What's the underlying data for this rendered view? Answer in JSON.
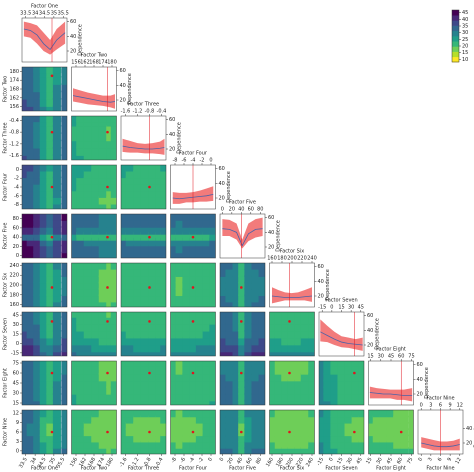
{
  "chart_data": {
    "type": "partial-dependence-matrix",
    "dependence_label": "Dependence",
    "dependence_ylim": [
      5,
      65
    ],
    "band_color": "#f27b7b",
    "line_color": "#4b62a8",
    "best_color": "#e0141e",
    "colormap": [
      "#fde725",
      "#b5de2b",
      "#6ece58",
      "#35b779",
      "#1f9e89",
      "#26828e",
      "#31688e",
      "#3e4989",
      "#482878",
      "#440154"
    ],
    "colorbar_lim": [
      8,
      47
    ],
    "colorbar_ticks": [
      10,
      15,
      20,
      25,
      30,
      35,
      40,
      45
    ],
    "factors": [
      {
        "name": "Factor One",
        "lim": [
          33.3,
          35.7
        ],
        "ticks": [
          33.5,
          34.0,
          34.5,
          35.0,
          35.5
        ],
        "best": 34.9,
        "dependence_ticks": [
          20,
          40,
          60
        ],
        "x": [
          33.4,
          33.75,
          34.1,
          34.45,
          34.8,
          35.15,
          35.6
        ],
        "dependence": [
          50,
          48,
          42,
          30,
          22,
          35,
          45
        ],
        "lower": [
          40,
          38,
          30,
          20,
          15,
          22,
          30
        ],
        "upper": [
          60,
          58,
          55,
          45,
          35,
          50,
          60
        ]
      },
      {
        "name": "Factor Two",
        "lim": [
          153,
          183
        ],
        "ticks": [
          156,
          162,
          168,
          174,
          180
        ],
        "best": 177,
        "dependence_ticks": [
          20,
          40,
          60
        ],
        "x": [
          154,
          159,
          164,
          169,
          174,
          179,
          182
        ],
        "dependence": [
          26,
          24,
          22,
          20,
          18,
          17,
          18
        ],
        "lower": [
          18,
          16,
          14,
          13,
          12,
          10,
          8
        ],
        "upper": [
          36,
          33,
          30,
          28,
          26,
          26,
          28
        ]
      },
      {
        "name": "Factor Three",
        "lim": [
          -1.75,
          -0.25
        ],
        "ticks": [
          -1.6,
          -1.2,
          -0.8,
          -0.4
        ],
        "best": -0.8,
        "dependence_ticks": [
          20,
          40,
          60
        ],
        "x": [
          -1.7,
          -1.45,
          -1.2,
          -0.95,
          -0.7,
          -0.45,
          -0.3
        ],
        "dependence": [
          24,
          22,
          21,
          20,
          20,
          21,
          22
        ],
        "lower": [
          16,
          15,
          15,
          14,
          14,
          13,
          12
        ],
        "upper": [
          34,
          31,
          28,
          27,
          28,
          30,
          34
        ]
      },
      {
        "name": "Factor Four",
        "lim": [
          -9,
          1
        ],
        "ticks": [
          -8,
          -6,
          -4,
          -2,
          0
        ],
        "best": -4,
        "dependence_ticks": [
          20,
          40,
          60
        ],
        "x": [
          -8.5,
          -7,
          -5.5,
          -4,
          -2.5,
          -1,
          0.5
        ],
        "dependence": [
          20,
          19,
          20,
          21,
          22,
          23,
          25
        ],
        "lower": [
          12,
          12,
          14,
          14,
          15,
          15,
          16
        ],
        "upper": [
          28,
          27,
          27,
          28,
          30,
          33,
          36
        ]
      },
      {
        "name": "Factor Five",
        "lim": [
          -5,
          90
        ],
        "ticks": [
          0,
          20,
          40,
          60,
          80
        ],
        "best": 40,
        "dependence_ticks": [
          20,
          40,
          60
        ],
        "x": [
          0,
          15,
          30,
          42,
          55,
          70,
          85
        ],
        "dependence": [
          45,
          44,
          40,
          22,
          38,
          44,
          45
        ],
        "lower": [
          35,
          35,
          30,
          18,
          28,
          33,
          35
        ],
        "upper": [
          58,
          57,
          52,
          30,
          52,
          58,
          60
        ]
      },
      {
        "name": "Factor Six",
        "lim": [
          155,
          245
        ],
        "ticks": [
          160,
          180,
          200,
          220,
          240
        ],
        "best": 195,
        "dependence_ticks": [
          20,
          40,
          60
        ],
        "x": [
          160,
          173,
          186,
          199,
          212,
          225,
          240
        ],
        "dependence": [
          20,
          19,
          18,
          18,
          18,
          19,
          20
        ],
        "lower": [
          10,
          12,
          14,
          14,
          14,
          14,
          12
        ],
        "upper": [
          32,
          28,
          25,
          24,
          25,
          28,
          32
        ]
      },
      {
        "name": "Factor Seven",
        "lim": [
          -20,
          50
        ],
        "ticks": [
          -15,
          0,
          15,
          30,
          45
        ],
        "best": 35,
        "dependence_ticks": [
          20,
          40,
          60
        ],
        "x": [
          -18,
          -7,
          4,
          15,
          26,
          37,
          48
        ],
        "dependence": [
          38,
          33,
          28,
          24,
          22,
          21,
          20
        ],
        "lower": [
          25,
          24,
          20,
          17,
          16,
          14,
          12
        ],
        "upper": [
          55,
          46,
          38,
          32,
          30,
          28,
          30
        ]
      },
      {
        "name": "Factor Eight",
        "lim": [
          12,
          78
        ],
        "ticks": [
          15,
          30,
          45,
          60,
          75
        ],
        "best": 60,
        "dependence_ticks": [
          20,
          40,
          60
        ],
        "x": [
          14,
          24,
          34,
          44,
          54,
          64,
          76
        ],
        "dependence": [
          22,
          21,
          20,
          20,
          19,
          18,
          18
        ],
        "lower": [
          14,
          14,
          14,
          14,
          12,
          12,
          10
        ],
        "upper": [
          30,
          28,
          27,
          26,
          26,
          26,
          28
        ]
      },
      {
        "name": "Factor Nine",
        "lim": [
          -1,
          13
        ],
        "ticks": [
          0,
          3,
          6,
          9,
          12
        ],
        "best": 6,
        "dependence_ticks": [
          20,
          40
        ],
        "x": [
          0,
          2,
          4,
          6,
          8,
          10,
          12
        ],
        "dependence": [
          20,
          18,
          16,
          15,
          15,
          16,
          18
        ],
        "lower": [
          14,
          12,
          10,
          10,
          10,
          10,
          10
        ],
        "upper": [
          28,
          26,
          24,
          22,
          22,
          23,
          26
        ]
      }
    ]
  }
}
